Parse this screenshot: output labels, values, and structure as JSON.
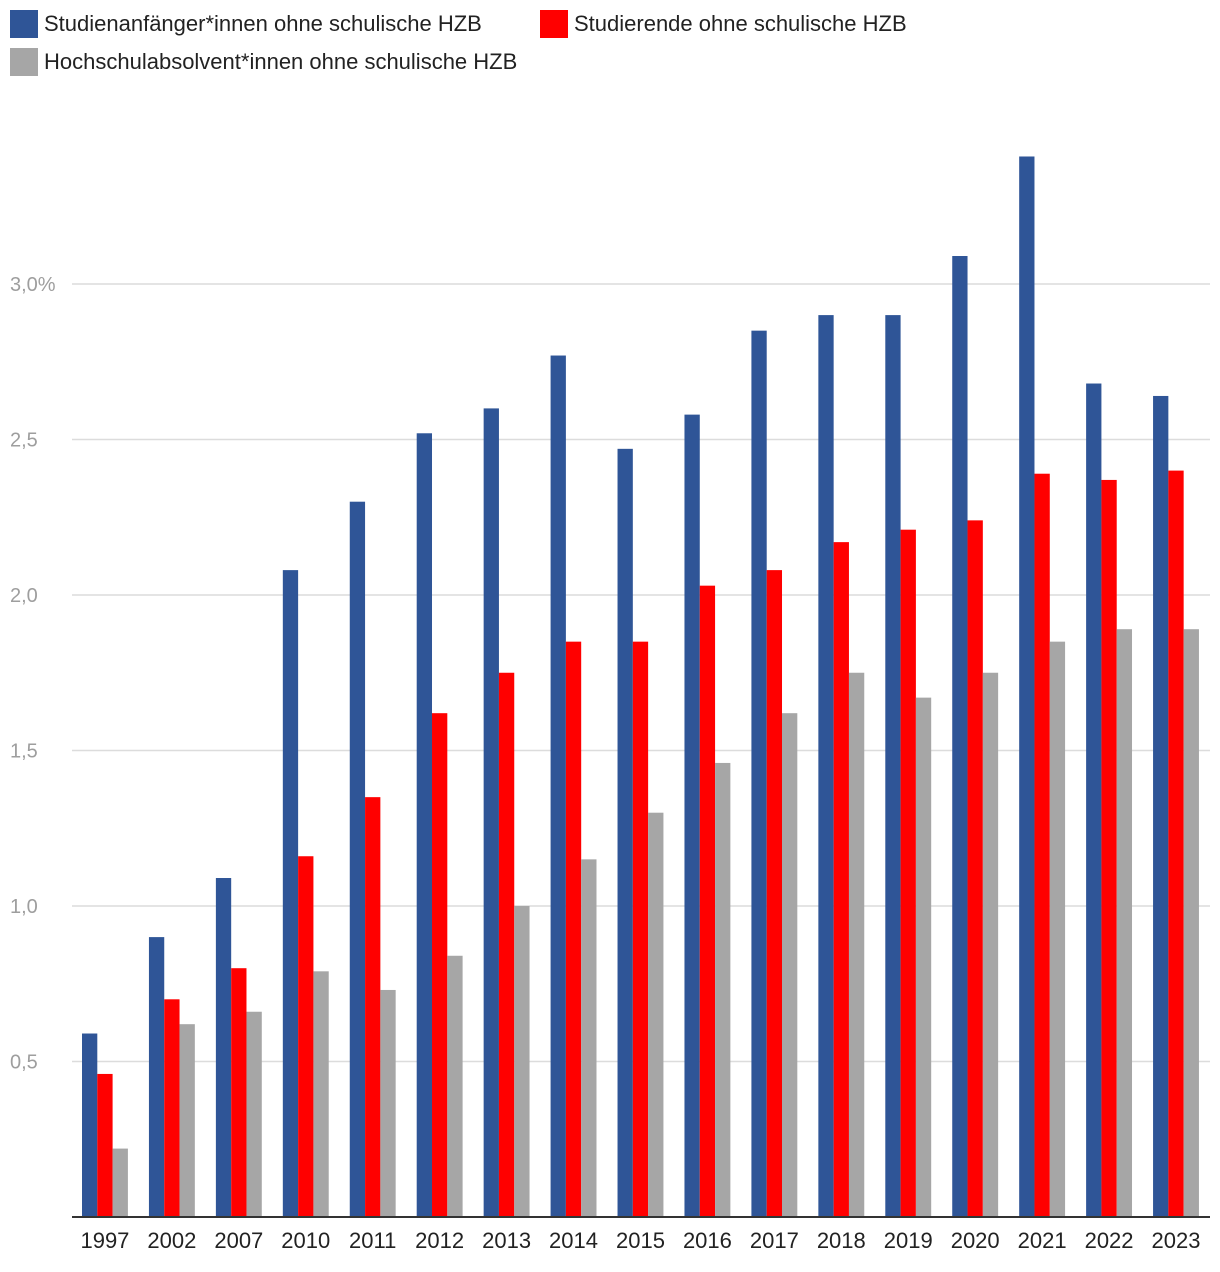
{
  "chart_data": {
    "type": "bar",
    "categories": [
      "1997",
      "2002",
      "2007",
      "2010",
      "2011",
      "2012",
      "2013",
      "2014",
      "2015",
      "2016",
      "2017",
      "2018",
      "2019",
      "2020",
      "2021",
      "2022",
      "2023"
    ],
    "series": [
      {
        "name": "Studienanfänger*innen ohne schulische HZB",
        "color": "#2f5597",
        "values": [
          0.59,
          0.9,
          1.09,
          2.08,
          2.3,
          2.52,
          2.6,
          2.77,
          2.47,
          2.58,
          2.85,
          2.9,
          2.9,
          3.09,
          3.41,
          2.68,
          2.64
        ]
      },
      {
        "name": "Studierende ohne schulische HZB",
        "color": "#ff0000",
        "values": [
          0.46,
          0.7,
          0.8,
          1.16,
          1.35,
          1.62,
          1.75,
          1.85,
          1.85,
          2.03,
          2.08,
          2.17,
          2.21,
          2.24,
          2.39,
          2.37,
          2.4
        ]
      },
      {
        "name": "Hochschulabsolvent*innen ohne schulische HZB",
        "color": "#a6a6a6",
        "values": [
          0.22,
          0.62,
          0.66,
          0.79,
          0.73,
          0.84,
          1.0,
          1.15,
          1.3,
          1.46,
          1.62,
          1.75,
          1.67,
          1.75,
          1.85,
          1.89,
          1.89
        ]
      }
    ],
    "y_ticks": [
      "0,5",
      "1,0",
      "1,5",
      "2,0",
      "2,5",
      "3,0%"
    ],
    "y_tick_values": [
      0.5,
      1.0,
      1.5,
      2.0,
      2.5,
      3.0
    ],
    "ylim": [
      0,
      3.5
    ],
    "grid": true,
    "legend_position": "top-left",
    "title": "",
    "xlabel": "",
    "ylabel": ""
  }
}
